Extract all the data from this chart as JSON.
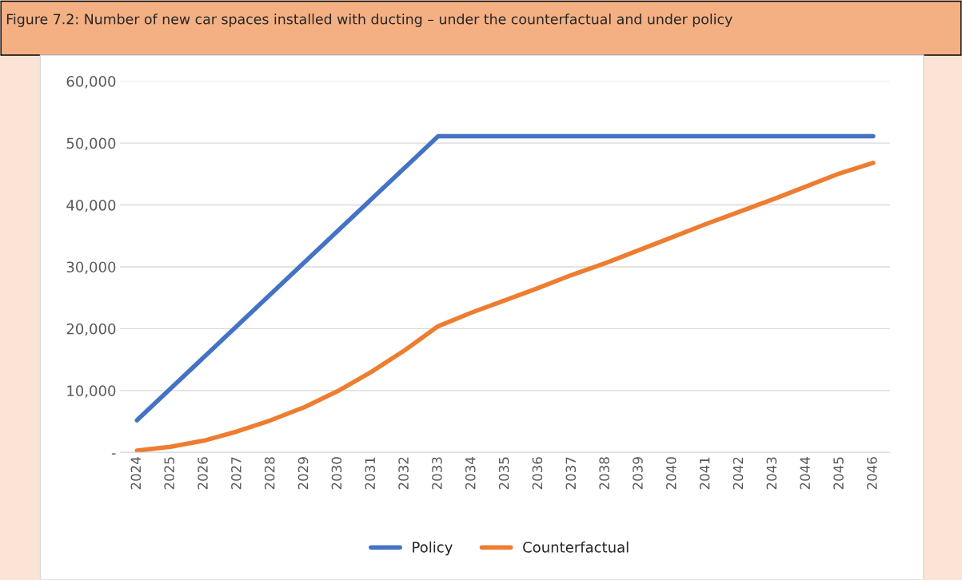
{
  "chart_data": {
    "type": "line",
    "title": "Figure 7.2: Number of new car spaces installed with ducting – under the counterfactual and under policy",
    "categories": [
      "2024",
      "2025",
      "2026",
      "2027",
      "2028",
      "2029",
      "2030",
      "2031",
      "2032",
      "2033",
      "2034",
      "2035",
      "2036",
      "2037",
      "2038",
      "2039",
      "2040",
      "2041",
      "2042",
      "2043",
      "2044",
      "2045",
      "2046"
    ],
    "series": [
      {
        "name": "Policy",
        "color": "#4472c4",
        "values": [
          5200,
          10300,
          15400,
          20500,
          25600,
          30700,
          35800,
          40900,
          46000,
          51100,
          51100,
          51100,
          51100,
          51100,
          51100,
          51100,
          51100,
          51100,
          51100,
          51100,
          51100,
          51100,
          51100
        ]
      },
      {
        "name": "Counterfactual",
        "color": "#ed7d31",
        "values": [
          300,
          900,
          1900,
          3400,
          5200,
          7300,
          9900,
          13000,
          16500,
          20400,
          22600,
          24600,
          26600,
          28700,
          30600,
          32700,
          34800,
          36900,
          38900,
          40900,
          43000,
          45100,
          46800
        ]
      }
    ],
    "ylim": [
      0,
      60000
    ],
    "yticks": [
      {
        "value": 0,
        "label": "-"
      },
      {
        "value": 10000,
        "label": "10,000"
      },
      {
        "value": 20000,
        "label": "20,000"
      },
      {
        "value": 30000,
        "label": "30,000"
      },
      {
        "value": 40000,
        "label": "40,000"
      },
      {
        "value": 50000,
        "label": "50,000"
      },
      {
        "value": 60000,
        "label": "60,000"
      }
    ],
    "grid": "y",
    "legend": "bottom",
    "marker": "none",
    "line_style": "solid"
  }
}
